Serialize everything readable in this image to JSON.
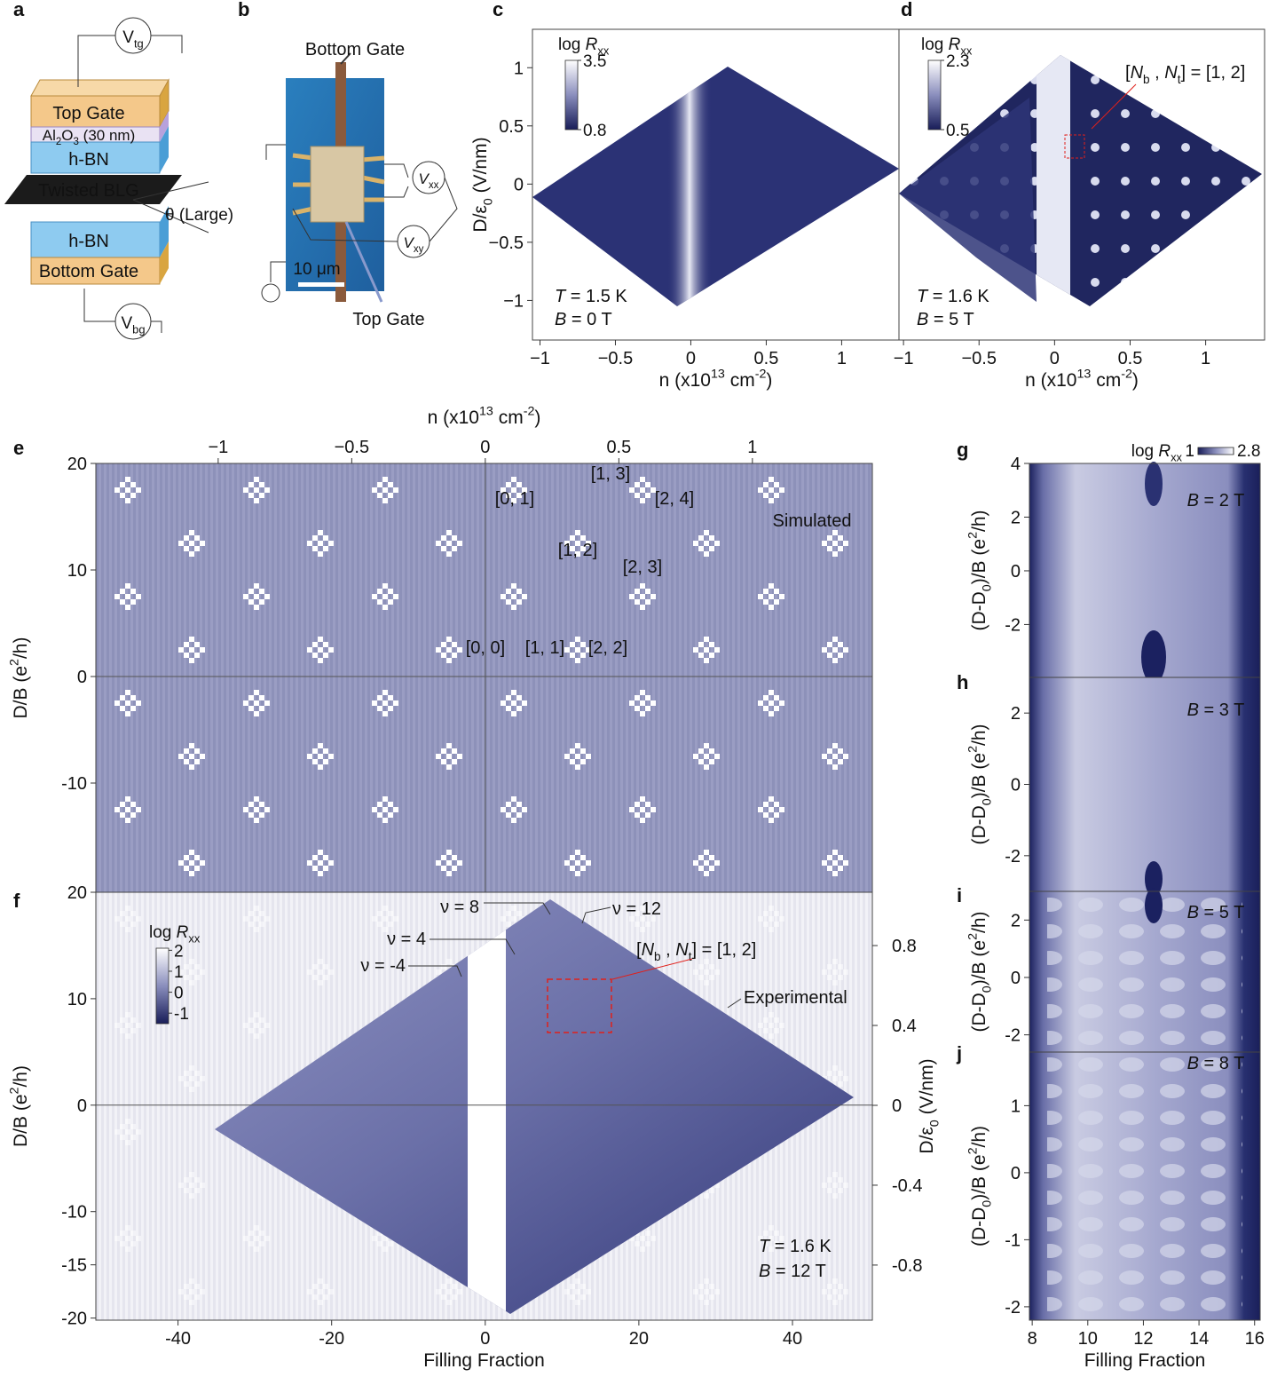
{
  "panel_labels": [
    "a",
    "b",
    "c",
    "d",
    "e",
    "f",
    "g",
    "h",
    "i",
    "j"
  ],
  "device_schematic": {
    "labels": [
      [
        "V",
        {
          "sub": "tg"
        }
      ],
      "Top Gate",
      [
        "Al",
        {
          "sub": "2"
        },
        "O",
        {
          "sub": "3"
        },
        " (30 nm)"
      ],
      "h-BN",
      "Twisted BLG",
      "θ (Large)",
      "h-BN",
      "Bottom Gate",
      [
        "V",
        {
          "sub": "bg"
        }
      ]
    ]
  },
  "device_photo": {
    "labels": [
      "Bottom Gate",
      "10 μm",
      "Top Gate",
      [
        {
          "it": "V"
        },
        {
          "sub": "xx"
        }
      ],
      [
        {
          "it": "V"
        },
        {
          "sub": "xy"
        }
      ]
    ]
  },
  "chart_data": [
    {
      "type": "heatmap",
      "xlabel": [
        "n (x10",
        {
          "sup": "13"
        },
        " cm",
        {
          "sup": "-2"
        },
        ")"
      ],
      "ylabel": [
        "D/ε",
        {
          "sub": "0"
        },
        " (V/nm)"
      ],
      "xlim": [
        -1.05,
        1.38
      ],
      "ylim": [
        -1.34,
        1.33
      ],
      "xticks": [
        {
          "value": -1,
          "label": "−1"
        },
        {
          "value": -0.5,
          "label": "−0.5"
        },
        0,
        0.5,
        1
      ],
      "yticks": [
        {
          "value": -1,
          "label": "−1"
        },
        {
          "value": -0.5,
          "label": "−0.5"
        },
        0,
        0.5,
        1
      ],
      "colorbar": {
        "label": [
          "log ",
          {
            "it": "R"
          },
          {
            "sub": "xx"
          }
        ],
        "clim": [
          0.8,
          3.5
        ],
        "ticks": [
          0.8,
          3.5
        ]
      },
      "annotations": [
        [
          {
            "it": "T"
          },
          " = 1.5 K"
        ],
        [
          {
            "it": "B"
          },
          " = 0 T"
        ]
      ]
    },
    {
      "type": "heatmap",
      "xlabel": [
        "n (x10",
        {
          "sup": "13"
        },
        " cm",
        {
          "sup": "-2"
        },
        ")"
      ],
      "xlim": [
        -1.03,
        1.39
      ],
      "xticks": [
        {
          "value": -1,
          "label": "−1"
        },
        {
          "value": -0.5,
          "label": "−0.5"
        },
        0,
        0.5,
        1
      ],
      "colorbar": {
        "label": [
          "log ",
          {
            "it": "R"
          },
          {
            "sub": "xx"
          }
        ],
        "clim": [
          0.5,
          2.3
        ],
        "ticks": [
          0.5,
          2.3
        ]
      },
      "annotations": [
        [
          {
            "it": "T"
          },
          " = 1.6 K"
        ],
        [
          {
            "it": "B"
          },
          " = 5 T"
        ],
        [
          "[",
          {
            "it": "N"
          },
          {
            "sub": "b"
          },
          " , ",
          {
            "it": "N"
          },
          {
            "sub": "t"
          },
          "] = [1, 2]"
        ]
      ]
    },
    {
      "type": "heatmap",
      "x2label": [
        "n (x10",
        {
          "sup": "13"
        },
        " cm",
        {
          "sup": "-2"
        },
        ")"
      ],
      "x2lim": [
        -1.458,
        1.449
      ],
      "x2ticks": [
        {
          "value": -1,
          "label": "−1"
        },
        {
          "value": -0.5,
          "label": "−0.5"
        },
        0,
        0.5,
        1
      ],
      "ylabel": [
        "D/B (e",
        {
          "sup": "2"
        },
        "/h)"
      ],
      "ylim": [
        -20.25,
        20
      ],
      "yticks": [
        -10,
        0,
        10,
        20
      ],
      "zero_lines": true,
      "annotations": [
        "[0, 1]",
        "[1, 3]",
        "[2, 4]",
        "[1, 2]",
        "[2, 3]",
        "[0, 0]",
        "[1, 1]",
        "[2, 2]",
        "Simulated"
      ]
    },
    {
      "type": "heatmap",
      "xlabel": "Filling Fraction",
      "xlim": [
        -50.7,
        50.4
      ],
      "xticks": [
        -40,
        -20,
        0,
        20,
        40
      ],
      "ylabel": [
        "D/B (e",
        {
          "sup": "2"
        },
        "/h)"
      ],
      "ylim": [
        -20.2,
        20
      ],
      "yticks": [
        -20,
        -15,
        -10,
        0,
        10,
        20
      ],
      "y2label": [
        "D/ε",
        {
          "sub": "0"
        },
        " (V/nm)"
      ],
      "y2lim": [
        -1.076,
        1.067
      ],
      "y2ticks": [
        -0.8,
        -0.4,
        0,
        0.4,
        0.8
      ],
      "zero_lines": true,
      "colorbar": {
        "label": [
          "log ",
          {
            "it": "R"
          },
          {
            "sub": "xx"
          }
        ],
        "clim": [
          -1.5,
          2.1
        ],
        "ticks": [
          -1,
          0,
          1,
          2
        ]
      },
      "annotations": [
        "ν = 8",
        "ν = 12",
        "ν = 4",
        "ν = -4",
        [
          "[",
          {
            "it": "N"
          },
          {
            "sub": "b"
          },
          " , ",
          {
            "it": "N"
          },
          {
            "sub": "t"
          },
          "] = [1, 2]"
        ],
        "Experimental",
        [
          {
            "it": "T"
          },
          " = 1.6 K"
        ],
        [
          {
            "it": "B"
          },
          " = 12 T"
        ]
      ]
    },
    {
      "type": "heatmap",
      "xlim": [
        7.9,
        16.2
      ],
      "ylabel": [
        "(D-D",
        {
          "sub": "0"
        },
        ")/B (e",
        {
          "sup": "2"
        },
        "/h)"
      ],
      "ylim": [
        -3.97,
        4
      ],
      "yticks": [
        -2,
        0,
        2,
        4
      ],
      "colorbar": {
        "label": [
          "log ",
          {
            "it": "R"
          },
          {
            "sub": "xx"
          }
        ],
        "clim": [
          1,
          2.8
        ],
        "ticks": [
          1,
          2.8
        ]
      },
      "annotations": [
        [
          {
            "it": "B"
          },
          " = 2 T"
        ]
      ]
    },
    {
      "type": "heatmap",
      "xlim": [
        7.9,
        16.2
      ],
      "ylabel": [
        "(D-D",
        {
          "sub": "0"
        },
        ")/B (e",
        {
          "sup": "2"
        },
        "/h)"
      ],
      "ylim": [
        -3,
        3
      ],
      "yticks": [
        -2,
        0,
        2
      ],
      "annotations": [
        [
          {
            "it": "B"
          },
          " = 3 T"
        ]
      ]
    },
    {
      "type": "heatmap",
      "xlim": [
        7.9,
        16.2
      ],
      "ylabel": [
        "(D-D",
        {
          "sub": "0"
        },
        ")/B (e",
        {
          "sup": "2"
        },
        "/h)"
      ],
      "ylim": [
        -2.6,
        3
      ],
      "yticks": [
        -2,
        0,
        2
      ],
      "annotations": [
        [
          {
            "it": "B"
          },
          " = 5 T"
        ]
      ]
    },
    {
      "type": "heatmap",
      "xlabel": "Filling Fraction",
      "xlim": [
        7.9,
        16.2
      ],
      "xticks": [
        8,
        10,
        12,
        14,
        16
      ],
      "ylabel": [
        "(D-D",
        {
          "sub": "0"
        },
        ")/B (e",
        {
          "sup": "2"
        },
        "/h)"
      ],
      "ylim": [
        -2.2,
        1.8
      ],
      "yticks": [
        -2,
        -1,
        0,
        1
      ],
      "annotations": [
        [
          {
            "it": "B"
          },
          " = 8 T"
        ]
      ]
    }
  ]
}
